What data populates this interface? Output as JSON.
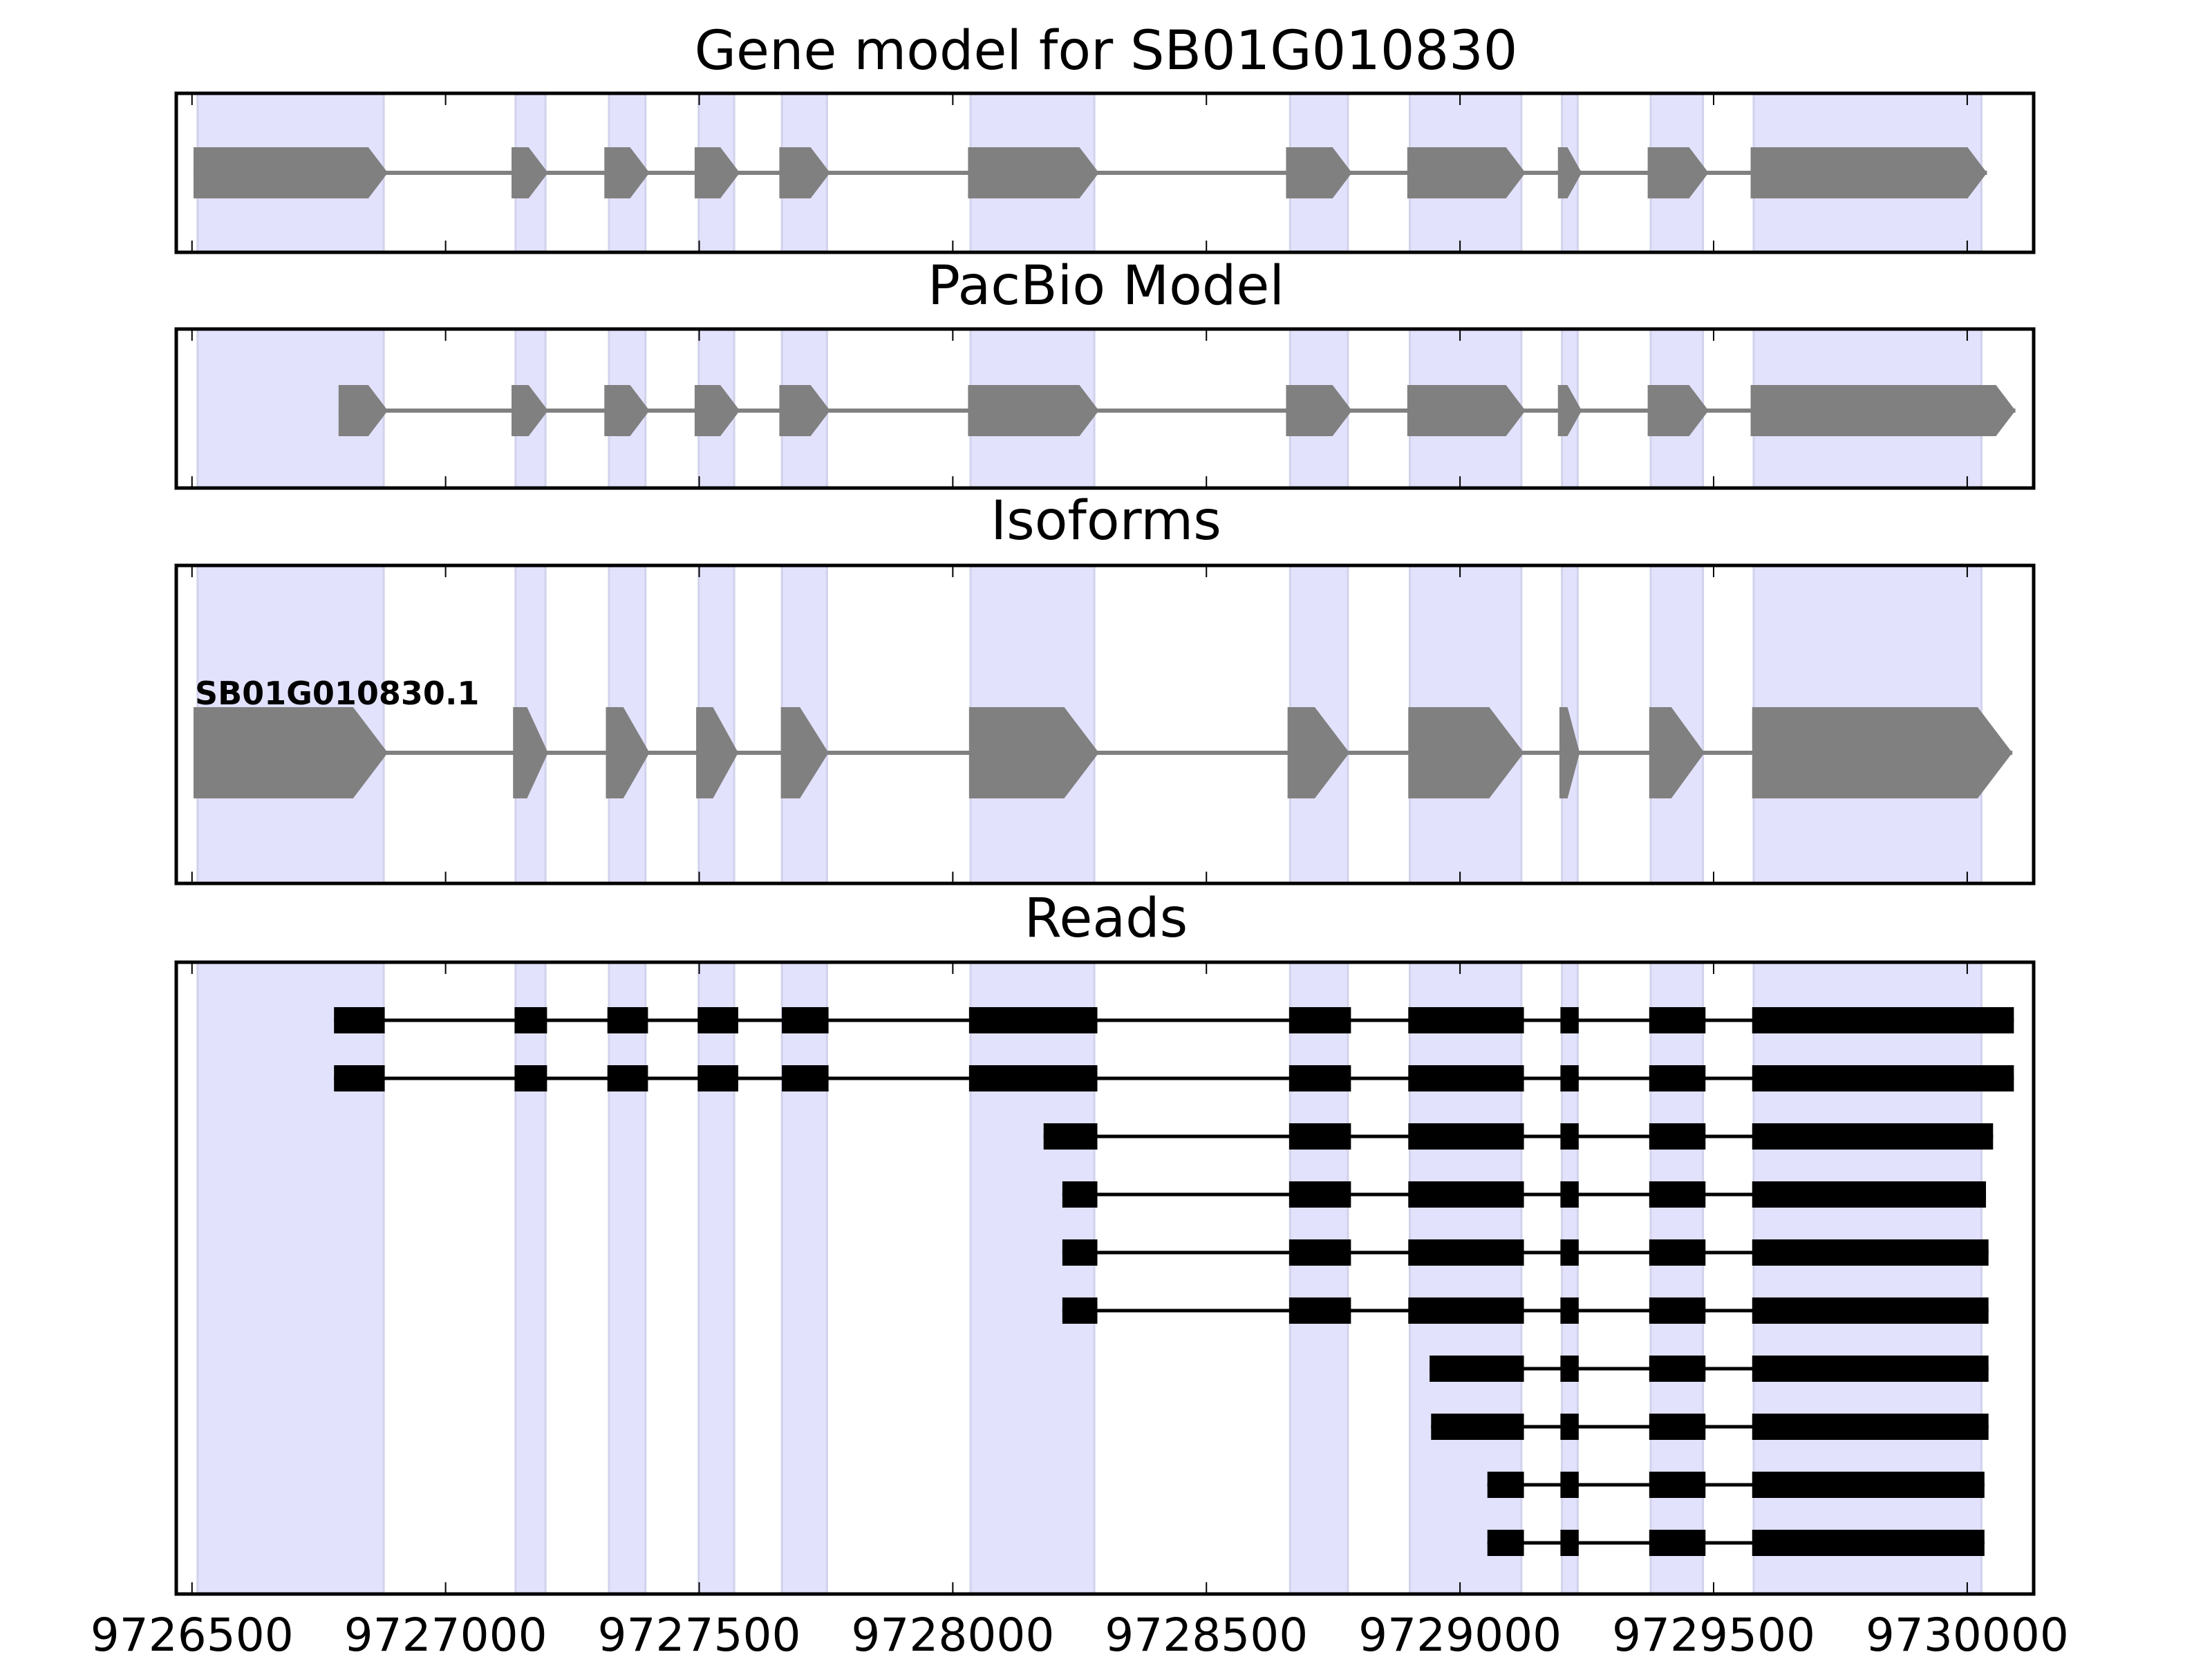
{
  "chart_data": {
    "type": "gene-structure",
    "xlim": [
      9726469,
      9730131
    ],
    "xticks": [
      9726500,
      9727000,
      9727500,
      9728000,
      9728500,
      9729000,
      9729500,
      9730000
    ],
    "xtick_labels": [
      "9726500",
      "9727000",
      "9727500",
      "9728000",
      "9728500",
      "9729000",
      "9729500",
      "9730000"
    ],
    "shade_color": "#e2e2fd",
    "shaded_regions": [
      [
        9726511,
        9726878
      ],
      [
        9727138,
        9727197
      ],
      [
        9727322,
        9727394
      ],
      [
        9727499,
        9727569
      ],
      [
        9727663,
        9727752
      ],
      [
        9728035,
        9728279
      ],
      [
        9728665,
        9728779
      ],
      [
        9728901,
        9729121
      ],
      [
        9729201,
        9729232
      ],
      [
        9729376,
        9729479
      ],
      [
        9729579,
        9730028
      ]
    ],
    "panels": [
      {
        "title": "Gene model for SB01G010830",
        "kind": "arrow",
        "color": "#808080",
        "models": [
          {
            "exons": [
              [
                9726503,
                9726886
              ],
              [
                9727130,
                9727202
              ],
              [
                9727313,
                9727402
              ],
              [
                9727491,
                9727580
              ],
              [
                9727658,
                9727758
              ],
              [
                9728030,
                9728288
              ],
              [
                9728657,
                9728787
              ],
              [
                9728896,
                9729129
              ],
              [
                9729193,
                9729240
              ],
              [
                9729370,
                9729490
              ],
              [
                9729573,
                9730039
              ]
            ]
          }
        ]
      },
      {
        "title": "PacBio Model",
        "kind": "arrow",
        "color": "#808080",
        "models": [
          {
            "exons": [
              [
                9726789,
                9726886
              ],
              [
                9727130,
                9727202
              ],
              [
                9727313,
                9727402
              ],
              [
                9727491,
                9727580
              ],
              [
                9727658,
                9727758
              ],
              [
                9728030,
                9728288
              ],
              [
                9728657,
                9728787
              ],
              [
                9728896,
                9729129
              ],
              [
                9729193,
                9729240
              ],
              [
                9729370,
                9729490
              ],
              [
                9729573,
                9730095
              ]
            ]
          }
        ]
      },
      {
        "title": "Isoforms",
        "kind": "arrow",
        "color": "#808080",
        "models": [
          {
            "label": "SB01G010830.1",
            "exons": [
              [
                9726503,
                9726886
              ],
              [
                9727133,
                9727202
              ],
              [
                9727316,
                9727402
              ],
              [
                9727494,
                9727577
              ],
              [
                9727661,
                9727755
              ],
              [
                9728032,
                9728288
              ],
              [
                9728660,
                9728782
              ],
              [
                9728898,
                9729126
              ],
              [
                9729196,
                9729236
              ],
              [
                9729373,
                9729482
              ],
              [
                9729576,
                9730089
              ]
            ]
          }
        ]
      },
      {
        "title": "Reads",
        "kind": "block",
        "color": "#000000",
        "models": [
          {
            "exons": [
              [
                9726780,
                9726880
              ],
              [
                9727136,
                9727200
              ],
              [
                9727319,
                9727399
              ],
              [
                9727497,
                9727577
              ],
              [
                9727663,
                9727755
              ],
              [
                9728032,
                9728285
              ],
              [
                9728663,
                9728785
              ],
              [
                9728898,
                9729126
              ],
              [
                9729198,
                9729234
              ],
              [
                9729373,
                9729484
              ],
              [
                9729576,
                9730092
              ]
            ]
          },
          {
            "exons": [
              [
                9726780,
                9726880
              ],
              [
                9727136,
                9727200
              ],
              [
                9727319,
                9727399
              ],
              [
                9727497,
                9727577
              ],
              [
                9727663,
                9727755
              ],
              [
                9728032,
                9728285
              ],
              [
                9728663,
                9728785
              ],
              [
                9728898,
                9729126
              ],
              [
                9729198,
                9729234
              ],
              [
                9729373,
                9729484
              ],
              [
                9729576,
                9730092
              ]
            ]
          },
          {
            "exons": [
              [
                9728179,
                9728285
              ],
              [
                9728663,
                9728785
              ],
              [
                9728898,
                9729126
              ],
              [
                9729198,
                9729234
              ],
              [
                9729373,
                9729484
              ],
              [
                9729576,
                9730051
              ]
            ]
          },
          {
            "exons": [
              [
                9728216,
                9728285
              ],
              [
                9728663,
                9728785
              ],
              [
                9728898,
                9729126
              ],
              [
                9729198,
                9729234
              ],
              [
                9729373,
                9729484
              ],
              [
                9729576,
                9730037
              ]
            ]
          },
          {
            "exons": [
              [
                9728216,
                9728285
              ],
              [
                9728663,
                9728785
              ],
              [
                9728898,
                9729126
              ],
              [
                9729198,
                9729234
              ],
              [
                9729373,
                9729484
              ],
              [
                9729576,
                9730042
              ]
            ]
          },
          {
            "exons": [
              [
                9728216,
                9728285
              ],
              [
                9728663,
                9728785
              ],
              [
                9728898,
                9729126
              ],
              [
                9729198,
                9729234
              ],
              [
                9729373,
                9729484
              ],
              [
                9729576,
                9730042
              ]
            ]
          },
          {
            "exons": [
              [
                9728940,
                9729126
              ],
              [
                9729198,
                9729234
              ],
              [
                9729373,
                9729484
              ],
              [
                9729576,
                9730042
              ]
            ]
          },
          {
            "exons": [
              [
                9728943,
                9729126
              ],
              [
                9729198,
                9729234
              ],
              [
                9729373,
                9729484
              ],
              [
                9729576,
                9730042
              ]
            ]
          },
          {
            "exons": [
              [
                9729054,
                9729126
              ],
              [
                9729198,
                9729234
              ],
              [
                9729373,
                9729484
              ],
              [
                9729576,
                9730034
              ]
            ]
          },
          {
            "exons": [
              [
                9729054,
                9729126
              ],
              [
                9729198,
                9729234
              ],
              [
                9729373,
                9729484
              ],
              [
                9729576,
                9730034
              ]
            ]
          }
        ]
      }
    ]
  }
}
